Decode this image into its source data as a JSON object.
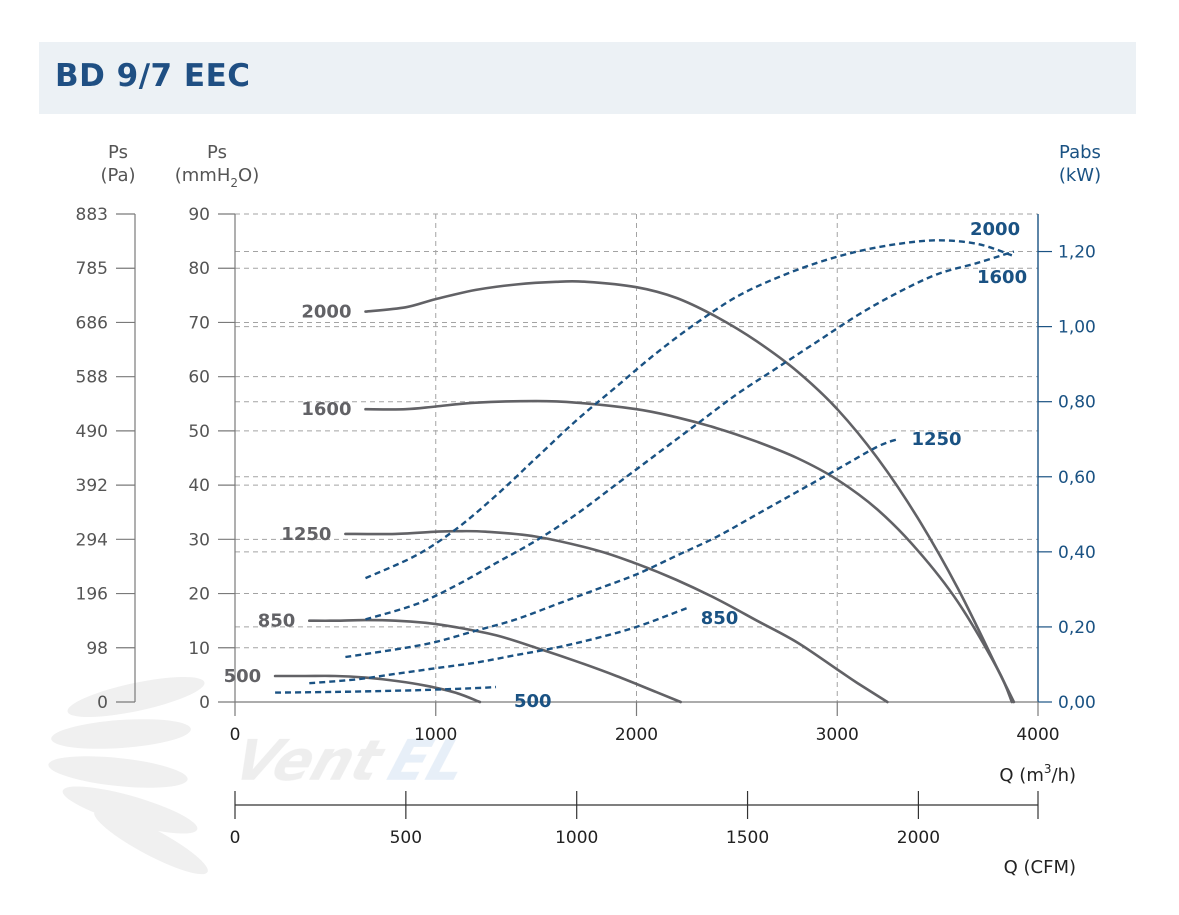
{
  "title": "BD 9/7 EEC",
  "colors": {
    "pressure": "#626266",
    "power": "#1a5283",
    "axis": "#7a7a7a",
    "grid": "#a3a3a3",
    "title": "#1f4f83",
    "title_bg": "#ecf1f5"
  },
  "watermark": {
    "text": "VentEL",
    "icon": "fan-icon"
  },
  "chart_data": {
    "type": "line",
    "axes": {
      "ps_pa": {
        "label": "Ps",
        "unit": "(Pa)",
        "ticks": [
          "883",
          "785",
          "686",
          "588",
          "490",
          "392",
          "294",
          "196",
          "98",
          "0"
        ]
      },
      "ps_mmh2o": {
        "label": "Ps",
        "unit_prefix": "(mmH",
        "unit_sub": "2",
        "unit_suffix": "O)",
        "ticks": [
          "90",
          "80",
          "70",
          "60",
          "50",
          "40",
          "30",
          "20",
          "10",
          "0"
        ],
        "ylim": [
          0,
          90
        ]
      },
      "pabs": {
        "label": "Pabs",
        "unit": "(kW)",
        "ticks": [
          "1,20",
          "1,00",
          "0,80",
          "0,60",
          "0,40",
          "0,20",
          "0,00"
        ],
        "tick_values": [
          1.2,
          1.0,
          0.8,
          0.6,
          0.4,
          0.2,
          0.0
        ],
        "ylim": [
          0,
          1.3
        ]
      },
      "q_m3h": {
        "label_prefix": "Q (m",
        "label_sup": "3",
        "label_suffix": "/h)",
        "ticks": [
          "0",
          "1000",
          "2000",
          "3000",
          "4000"
        ],
        "tick_values": [
          0,
          1000,
          2000,
          3000,
          4000
        ],
        "xlim": [
          0,
          4000
        ]
      },
      "q_cfm": {
        "label": "Q (CFM)",
        "ticks": [
          "0",
          "500",
          "1000",
          "1500",
          "2000"
        ],
        "tick_values": [
          0,
          500,
          1000,
          1500,
          2000
        ]
      }
    },
    "grid": true,
    "pressure_series": [
      {
        "name": "2000",
        "x": [
          650,
          850,
          1000,
          1200,
          1400,
          1600,
          1750,
          2000,
          2200,
          2400,
          2600,
          2800,
          3000,
          3200,
          3400,
          3600,
          3800,
          3880
        ],
        "y": [
          72,
          72.8,
          74.3,
          76,
          77,
          77.5,
          77.5,
          76.5,
          74.5,
          71,
          66.5,
          61,
          54,
          45,
          34,
          21,
          6,
          0
        ]
      },
      {
        "name": "1600",
        "x": [
          650,
          850,
          1000,
          1200,
          1500,
          1700,
          2000,
          2200,
          2400,
          2600,
          2800,
          3000,
          3200,
          3400,
          3600,
          3800,
          3870
        ],
        "y": [
          54,
          54,
          54.5,
          55.2,
          55.5,
          55.2,
          54,
          52.5,
          50.5,
          48,
          45,
          41,
          35.5,
          28,
          18.5,
          6,
          0
        ]
      },
      {
        "name": "1250",
        "x": [
          550,
          800,
          1000,
          1100,
          1250,
          1500,
          1800,
          2000,
          2200,
          2400,
          2600,
          2800,
          3000,
          3100,
          3250
        ],
        "y": [
          31,
          31,
          31.4,
          31.5,
          31.4,
          30.5,
          28,
          25.5,
          22.5,
          19,
          15,
          11,
          6,
          3.5,
          0
        ]
      },
      {
        "name": "850",
        "x": [
          370,
          500,
          650,
          800,
          950,
          1100,
          1300,
          1500,
          1700,
          1900,
          2100,
          2220
        ],
        "y": [
          15,
          15,
          15.1,
          15,
          14.6,
          13.8,
          12.3,
          10,
          7.5,
          4.8,
          1.8,
          0
        ]
      },
      {
        "name": "500",
        "x": [
          200,
          350,
          500,
          650,
          800,
          950,
          1100,
          1220
        ],
        "y": [
          4.8,
          4.8,
          4.8,
          4.5,
          3.9,
          3,
          1.7,
          0
        ]
      }
    ],
    "power_series": [
      {
        "name": "2000",
        "x": [
          650,
          900,
          1100,
          1300,
          1500,
          1700,
          1900,
          2100,
          2300,
          2500,
          2700,
          2900,
          3100,
          3300,
          3500,
          3700,
          3870
        ],
        "y": [
          0.33,
          0.39,
          0.46,
          0.55,
          0.65,
          0.75,
          0.84,
          0.93,
          1.01,
          1.08,
          1.13,
          1.17,
          1.2,
          1.22,
          1.23,
          1.22,
          1.19
        ]
      },
      {
        "name": "1600",
        "x": [
          650,
          900,
          1100,
          1300,
          1500,
          1700,
          1900,
          2100,
          2300,
          2500,
          2700,
          2900,
          3100,
          3300,
          3500,
          3700,
          3880
        ],
        "y": [
          0.22,
          0.26,
          0.31,
          0.37,
          0.43,
          0.5,
          0.58,
          0.66,
          0.74,
          0.82,
          0.89,
          0.96,
          1.03,
          1.09,
          1.14,
          1.17,
          1.2
        ]
      },
      {
        "name": "1250",
        "x": [
          550,
          800,
          1000,
          1200,
          1400,
          1600,
          1800,
          2000,
          2200,
          2400,
          2600,
          2800,
          3000,
          3200,
          3300
        ],
        "y": [
          0.12,
          0.14,
          0.16,
          0.19,
          0.22,
          0.26,
          0.3,
          0.34,
          0.39,
          0.44,
          0.5,
          0.56,
          0.62,
          0.68,
          0.7
        ]
      },
      {
        "name": "850",
        "x": [
          370,
          600,
          800,
          1000,
          1200,
          1400,
          1600,
          1800,
          2000,
          2250
        ],
        "y": [
          0.05,
          0.06,
          0.075,
          0.09,
          0.105,
          0.125,
          0.145,
          0.17,
          0.2,
          0.25
        ]
      },
      {
        "name": "500",
        "x": [
          200,
          500,
          800,
          1000,
          1200,
          1300
        ],
        "y": [
          0.025,
          0.027,
          0.03,
          0.033,
          0.037,
          0.04
        ]
      }
    ]
  }
}
